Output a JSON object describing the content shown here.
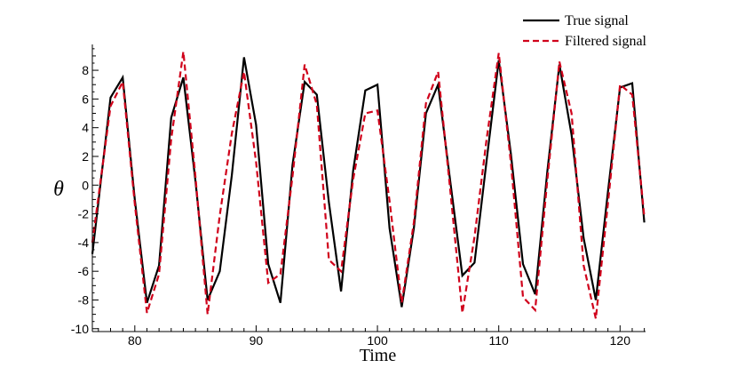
{
  "chart_data": {
    "type": "line",
    "title": "",
    "xlabel": "Time",
    "ylabel": "θ",
    "xlim": [
      76.5,
      122.1
    ],
    "ylim": [
      -10.2,
      9.8
    ],
    "xticks": [
      80,
      90,
      100,
      110,
      120
    ],
    "yticks": [
      -10,
      -8,
      -6,
      -4,
      -2,
      0,
      2,
      4,
      6,
      8
    ],
    "legend_position": "top-right",
    "grid": false,
    "series": [
      {
        "name": "True signal",
        "color": "#000000",
        "dash": "solid",
        "x": [
          76.5,
          78,
          79,
          80,
          81,
          82,
          83,
          84,
          85,
          86,
          87,
          88,
          89,
          90,
          91,
          92,
          93,
          94,
          95,
          96,
          97,
          98,
          99,
          100,
          101,
          102,
          103,
          104,
          105,
          106,
          107,
          108,
          109,
          110,
          111,
          112,
          113,
          114,
          115,
          116,
          117,
          118,
          119,
          120,
          121,
          122
        ],
        "y": [
          -4.8,
          6.1,
          7.5,
          -1.0,
          -8.2,
          -5.6,
          4.7,
          7.5,
          0.3,
          -8.0,
          -6.0,
          0.7,
          8.9,
          4.2,
          -5.5,
          -8.2,
          1.4,
          7.2,
          6.3,
          -1.2,
          -7.4,
          1.0,
          6.6,
          7.0,
          -3.0,
          -8.5,
          -3.0,
          5.0,
          7.0,
          0.3,
          -6.3,
          -5.4,
          1.7,
          8.7,
          2.2,
          -5.5,
          -7.6,
          0.9,
          8.4,
          3.5,
          -3.7,
          -8.0,
          -0.5,
          6.8,
          7.1,
          -2.6
        ]
      },
      {
        "name": "Filtered signal",
        "color": "#d0021b",
        "dash": "dashed",
        "x": [
          76.5,
          78,
          79,
          80,
          81,
          82,
          83,
          84,
          85,
          86,
          87,
          88,
          89,
          90,
          91,
          92,
          93,
          94,
          95,
          96,
          97,
          98,
          99,
          100,
          101,
          102,
          103,
          104,
          105,
          106,
          107,
          108,
          109,
          110,
          111,
          112,
          113,
          114,
          115,
          116,
          117,
          118,
          119,
          120,
          121,
          122
        ],
        "y": [
          -4.0,
          5.5,
          7.2,
          -1.3,
          -8.9,
          -6.2,
          3.2,
          9.3,
          0.6,
          -9.0,
          -2.1,
          3.6,
          7.9,
          1.6,
          -6.8,
          -6.2,
          0.6,
          8.4,
          5.6,
          -5.2,
          -6.0,
          0.4,
          5.0,
          5.2,
          -1.1,
          -8.2,
          -2.6,
          5.7,
          7.9,
          -0.3,
          -8.9,
          -3.6,
          3.2,
          9.2,
          1.6,
          -7.8,
          -8.7,
          0.3,
          8.6,
          5.0,
          -5.6,
          -9.3,
          -1.3,
          7.0,
          6.3,
          -2.2
        ]
      }
    ]
  }
}
